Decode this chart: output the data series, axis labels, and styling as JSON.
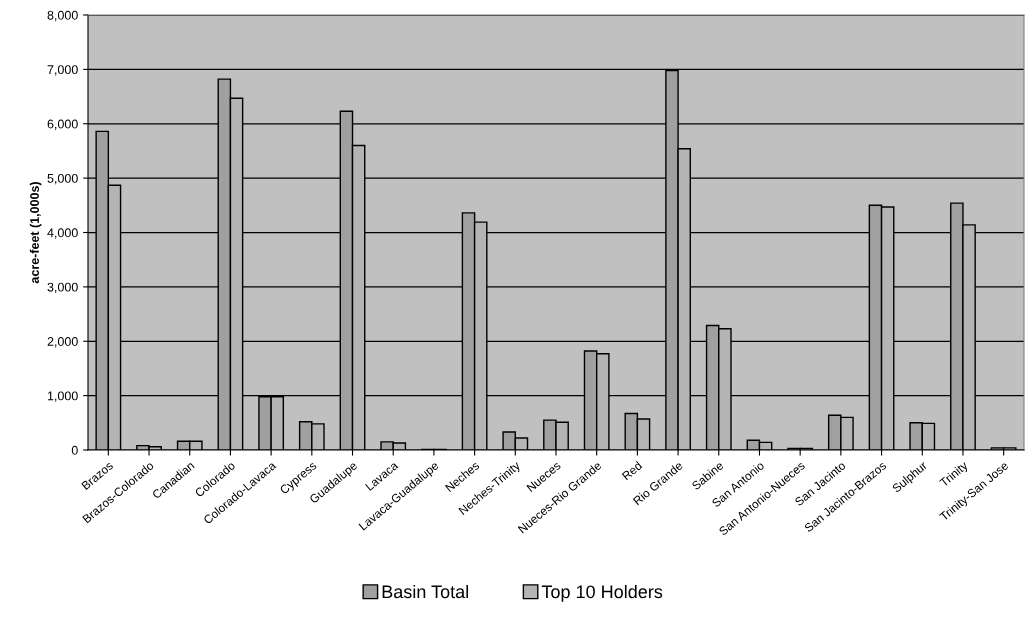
{
  "chart_data": {
    "type": "bar",
    "ylabel": "acre-feet (1,000s)",
    "categories": [
      "Brazos",
      "Brazos-Colorado",
      "Canadian",
      "Colorado",
      "Colorado-Lavaca",
      "Cypress",
      "Guadalupe",
      "Lavaca",
      "Lavaca-Guadalupe",
      "Neches",
      "Neches-Trinity",
      "Nueces",
      "Nueces-Rio Grande",
      "Red",
      "Rio Grande",
      "Sabine",
      "San Antonio",
      "San Antonio-Nueces",
      "San Jacinto",
      "San Jacinto-Brazos",
      "Sulphur",
      "Trinity",
      "Trinity-San Jose"
    ],
    "series": [
      {
        "name": "Basin Total",
        "color": "#a0a0a0",
        "values": [
          5860,
          80,
          160,
          6820,
          980,
          520,
          6230,
          150,
          10,
          4360,
          330,
          550,
          1820,
          670,
          6980,
          2290,
          180,
          30,
          640,
          4500,
          500,
          4540,
          40
        ]
      },
      {
        "name": "Top 10 Holders",
        "color": "#b4b4b4",
        "values": [
          4870,
          60,
          160,
          6470,
          980,
          480,
          5600,
          130,
          10,
          4190,
          220,
          510,
          1770,
          570,
          5540,
          2230,
          140,
          30,
          600,
          4470,
          490,
          4140,
          40
        ]
      }
    ],
    "ylim": [
      0,
      8000
    ],
    "yticks": [
      {
        "value": 0,
        "label": "0"
      },
      {
        "value": 1000,
        "label": "1,000"
      },
      {
        "value": 2000,
        "label": "2,000"
      },
      {
        "value": 3000,
        "label": "3,000"
      },
      {
        "value": 4000,
        "label": "4,000"
      },
      {
        "value": 5000,
        "label": "5,000"
      },
      {
        "value": 6000,
        "label": "6,000"
      },
      {
        "value": 7000,
        "label": "7,000"
      },
      {
        "value": 8000,
        "label": "8,000"
      }
    ],
    "grid": "y",
    "legend": "bottom"
  }
}
